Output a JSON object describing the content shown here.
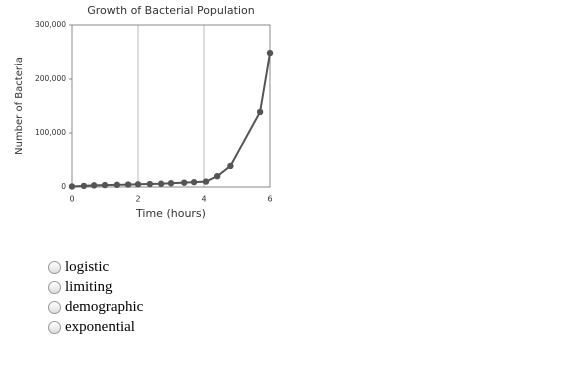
{
  "chart_data": {
    "type": "line",
    "title": "Growth of Bacterial Population",
    "x_label": "Time (hours)",
    "y_label": "Number of Bacteria",
    "x": [
      0,
      0.36,
      0.67,
      1.0,
      1.36,
      1.7,
      2.0,
      2.36,
      2.7,
      3.0,
      3.4,
      3.7,
      4.06,
      4.4,
      4.8,
      5.7,
      6.0
    ],
    "series": [
      {
        "color": "#555555",
        "values": [
          1000,
          2000,
          3000,
          3500,
          4000,
          4500,
          5000,
          5500,
          6000,
          7000,
          8000,
          9000,
          10000,
          20000,
          39000,
          139000,
          248000
        ]
      }
    ],
    "xlim": [
      0,
      6
    ],
    "xticks": [
      0,
      2,
      4,
      6
    ],
    "ylim": [
      0,
      300000
    ],
    "yticks": [
      0,
      {
        "value": 100000,
        "label": "100,000"
      },
      {
        "value": 200000,
        "label": "200,000"
      },
      {
        "value": 300000,
        "label": "300,000"
      }
    ],
    "xgrid": true
  },
  "options": [
    "logistic",
    "limiting",
    "demographic",
    "exponential"
  ]
}
